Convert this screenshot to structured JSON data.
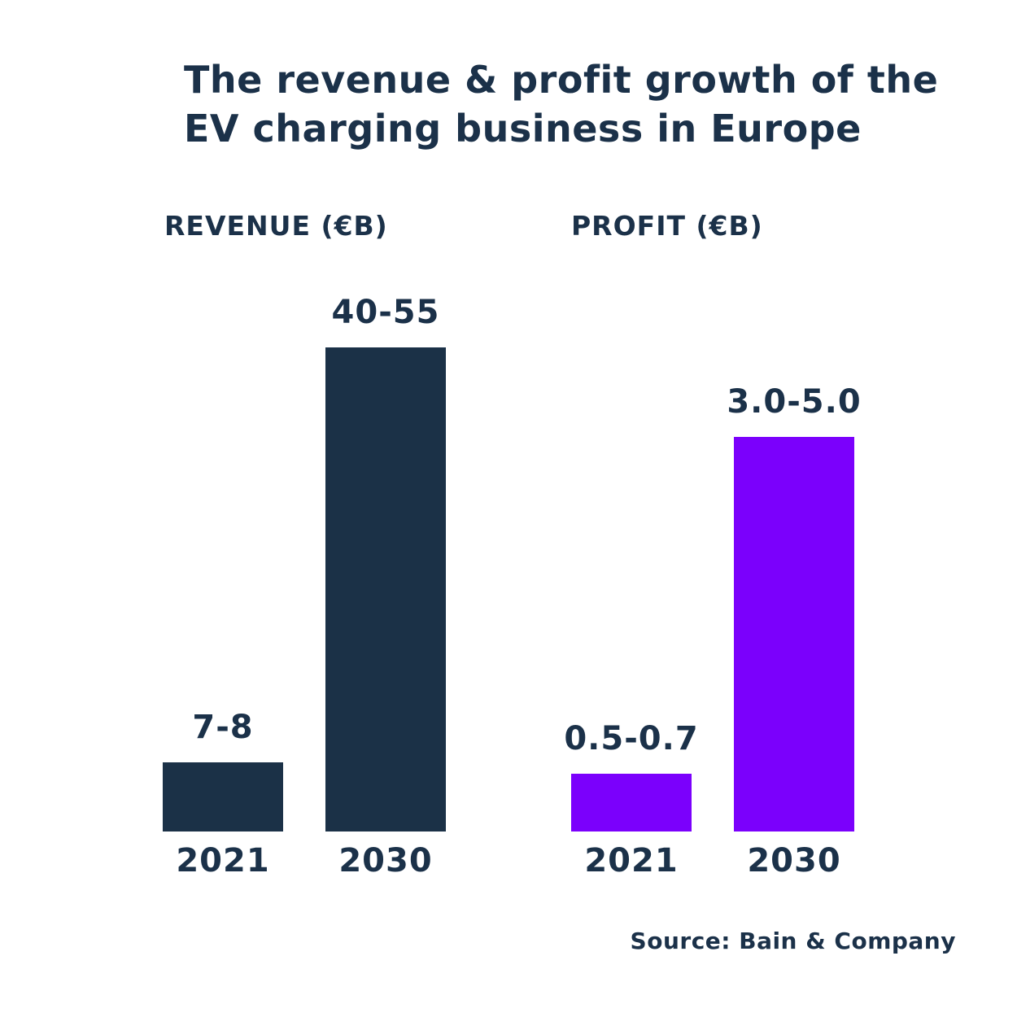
{
  "title": {
    "line1": "The revenue & profit growth of the",
    "line2": "EV charging business in Europe",
    "full": "The revenue & profit growth of the EV charging business in Europe"
  },
  "colors": {
    "navy": "#1B3147",
    "purple": "#7B00FC",
    "text": "#1B3149",
    "background": "#FFFFFF"
  },
  "source": "Source: Bain & Company",
  "chart_data": [
    {
      "type": "bar",
      "title": "REVENUE (€B)",
      "unit": "€B",
      "categories": [
        "2021",
        "2030"
      ],
      "values": [
        [
          7,
          8
        ],
        [
          40,
          55
        ]
      ],
      "value_labels": [
        "7-8",
        "40-55"
      ],
      "bar_color": "#1B3147",
      "legend": "none",
      "grid": false,
      "axis_labels": "data labels above bars, years below bars"
    },
    {
      "type": "bar",
      "title": "PROFIT (€B)",
      "unit": "€B",
      "categories": [
        "2021",
        "2030"
      ],
      "values": [
        [
          0.5,
          0.7
        ],
        [
          3.0,
          5.0
        ]
      ],
      "value_labels": [
        "0.5-0.7",
        "3.0-5.0"
      ],
      "bar_color": "#7B00FC",
      "legend": "none",
      "grid": false,
      "axis_labels": "data labels above bars, years below bars"
    }
  ]
}
